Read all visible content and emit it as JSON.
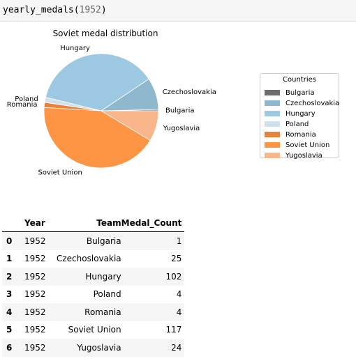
{
  "input_cell": {
    "code_fn": "yearly_medals",
    "code_open": "(",
    "code_arg": "1952",
    "code_close": ")"
  },
  "chart_data": {
    "type": "pie",
    "title": "Soviet medal distribution",
    "categories": [
      "Bulgaria",
      "Czechoslovakia",
      "Hungary",
      "Poland",
      "Romania",
      "Soviet Union",
      "Yugoslavia"
    ],
    "values": [
      1,
      25,
      102,
      4,
      4,
      117,
      24
    ],
    "colors": [
      "#6e6e6e",
      "#8fb8cf",
      "#9dc8e2",
      "#cfe1ec",
      "#e8823a",
      "#fd9545",
      "#f9b68a"
    ],
    "legend_title": "Countries",
    "legend_position": "right",
    "labels_position": "outside"
  },
  "table": {
    "columns": [
      "",
      "Year",
      "Team",
      "Medal_Count"
    ],
    "rows": [
      [
        "0",
        "1952",
        "Bulgaria",
        "1"
      ],
      [
        "1",
        "1952",
        "Czechoslovakia",
        "25"
      ],
      [
        "2",
        "1952",
        "Hungary",
        "102"
      ],
      [
        "3",
        "1952",
        "Poland",
        "4"
      ],
      [
        "4",
        "1952",
        "Romania",
        "4"
      ],
      [
        "5",
        "1952",
        "Soviet Union",
        "117"
      ],
      [
        "6",
        "1952",
        "Yugoslavia",
        "24"
      ]
    ]
  }
}
